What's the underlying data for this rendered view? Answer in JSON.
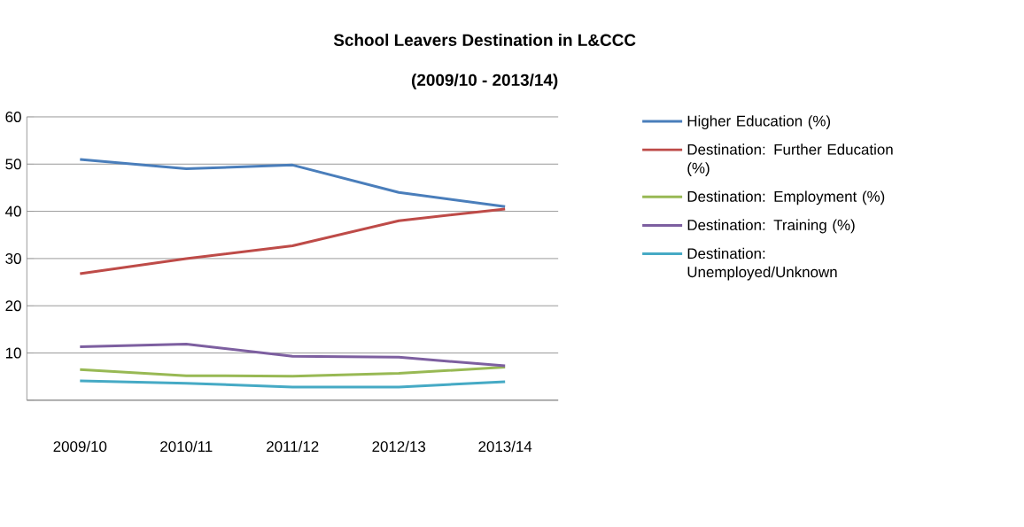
{
  "chart_data": {
    "type": "line",
    "title": "School Leavers Destination in L&CCC",
    "subtitle": "(2009/10 - 2013/14)",
    "categories": [
      "2009/10",
      "2010/11",
      "2011/12",
      "2012/13",
      "2013/14"
    ],
    "series": [
      {
        "name": "Higher Education (%)",
        "color": "#4a7ebb",
        "values": [
          51,
          49,
          49.8,
          44,
          41
        ]
      },
      {
        "name": "Destination: Further Education (%)",
        "color": "#be4b48",
        "values": [
          26.8,
          30,
          32.7,
          38,
          40.5
        ]
      },
      {
        "name": "Destination: Employment (%)",
        "color": "#98b954",
        "values": [
          6.5,
          5.2,
          5.1,
          5.7,
          7
        ]
      },
      {
        "name": "Destination: Training (%)",
        "color": "#7d5fa0",
        "values": [
          11.3,
          11.9,
          9.3,
          9.1,
          7.3
        ]
      },
      {
        "name": "Destination: Unemployed/Unknown",
        "color": "#46aac5",
        "values": [
          4.1,
          3.6,
          2.8,
          2.8,
          3.9
        ]
      }
    ],
    "ylim": [
      0,
      60
    ],
    "yticks": [
      {
        "value": 0,
        "label": null
      },
      10,
      20,
      30,
      40,
      50,
      60
    ],
    "grid": "y",
    "legend": "right",
    "marker": "none",
    "line_style": "solid"
  }
}
